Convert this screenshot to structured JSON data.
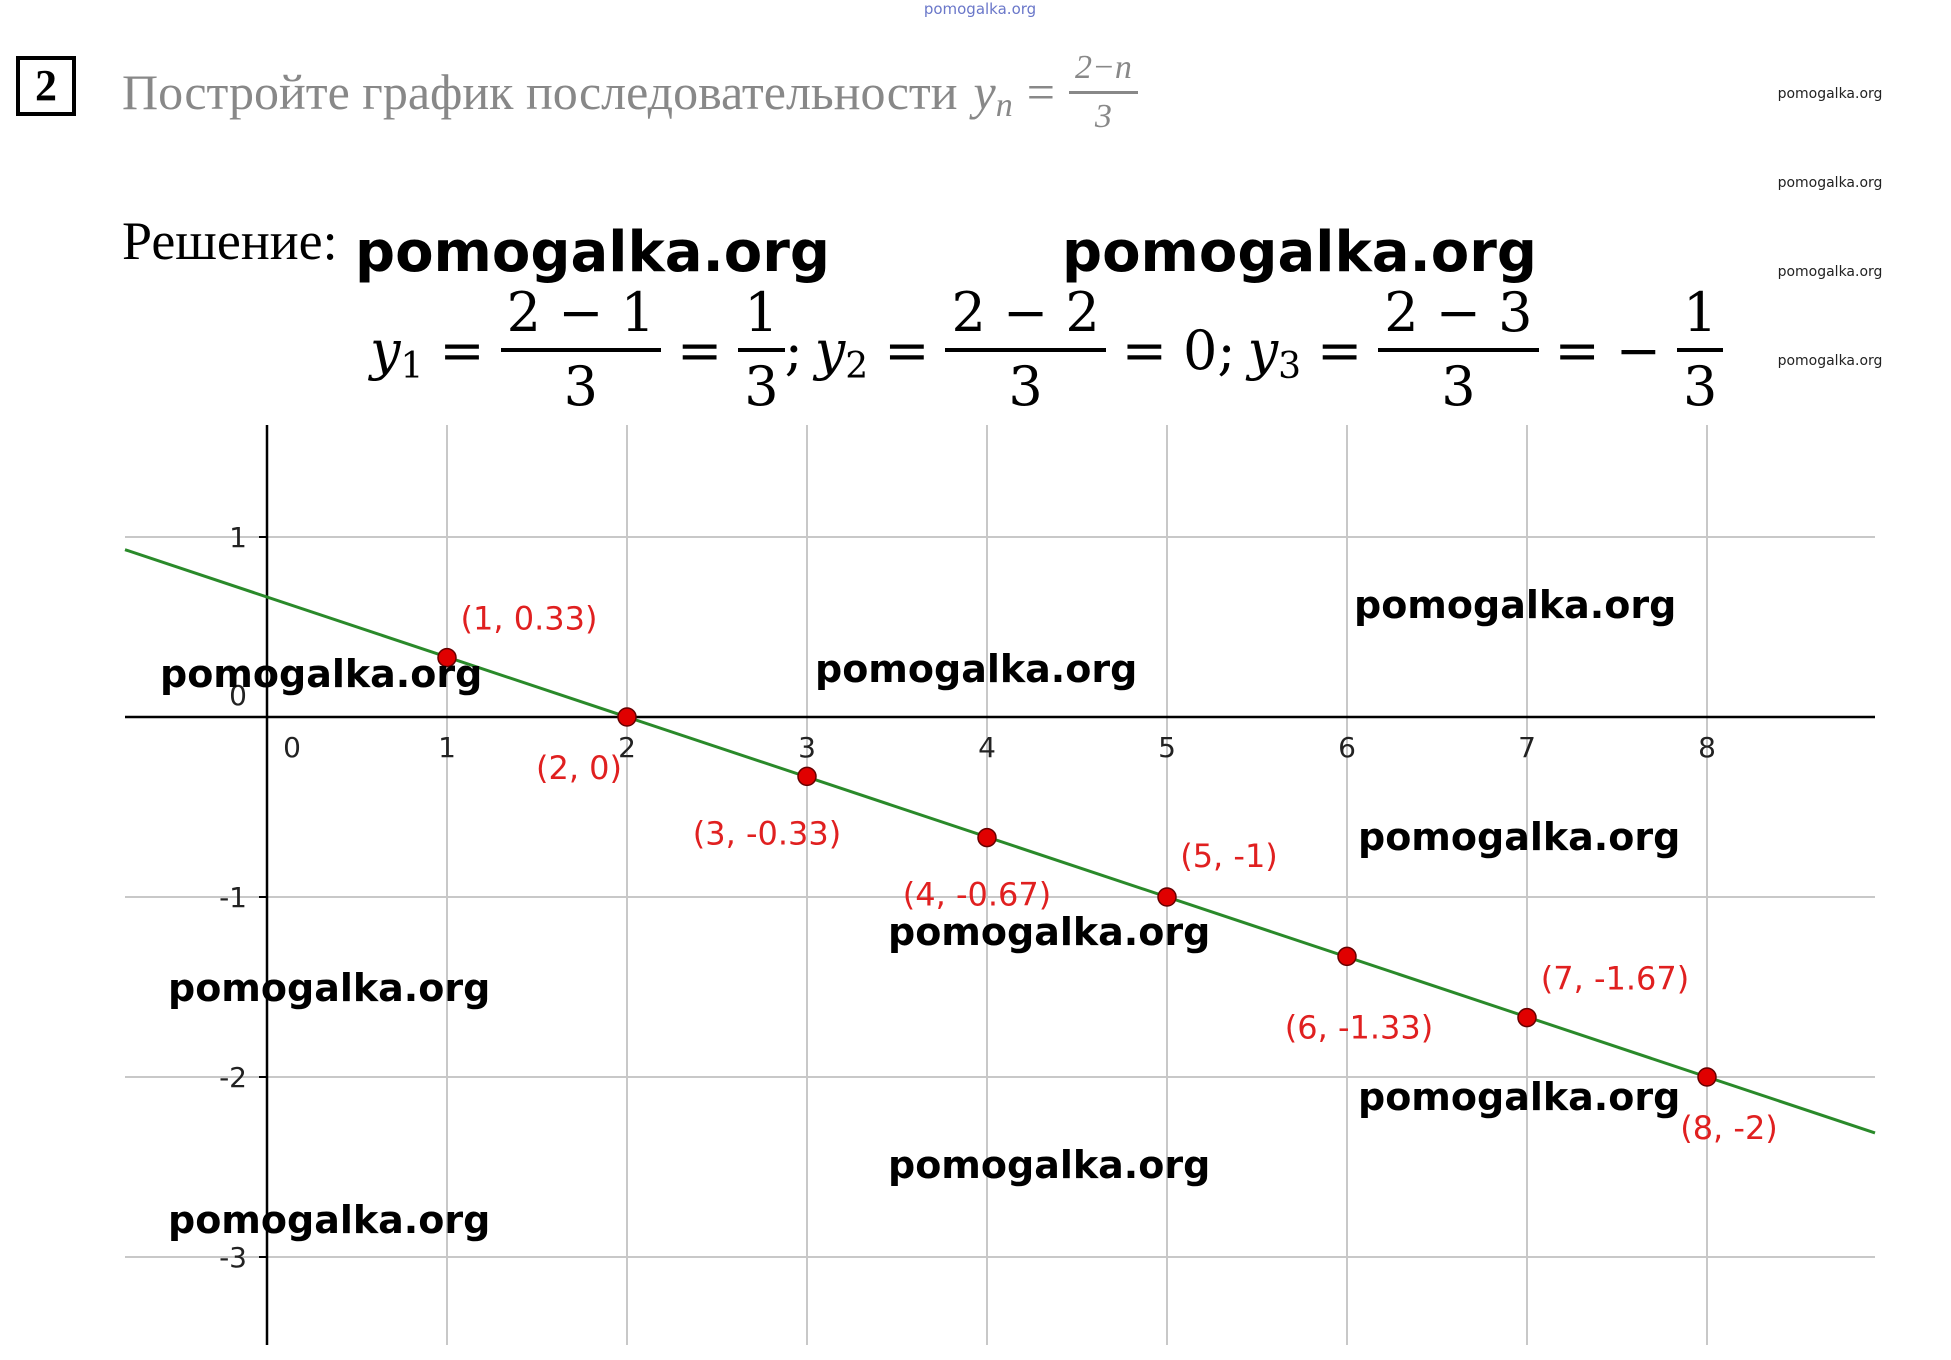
{
  "watermarks": {
    "top": "pomogalka.org",
    "side": [
      "pomogalka.org",
      "pomogalka.org",
      "pomogalka.org",
      "pomogalka.org"
    ],
    "big": [
      "pomogalka.org",
      "pomogalka.org"
    ],
    "chart": [
      "pomogalka.org",
      "pomogalka.org",
      "pomogalka.org",
      "pomogalka.org",
      "pomogalka.org",
      "pomogalka.org",
      "pomogalka.org",
      "pomogalka.org",
      "pomogalka.org",
      "pomogalka.org"
    ]
  },
  "task": {
    "number": "2",
    "text": "Постройте график последовательности",
    "variable": "y",
    "subscript": "n",
    "equals": "=",
    "numerator": "2−n",
    "denominator": "3"
  },
  "solution_label": "Решение:",
  "formula": {
    "terms": [
      {
        "var": "y",
        "sub": "1",
        "num": "2 − 1",
        "den": "3",
        "result_num": "1",
        "result_den": "3",
        "result_sign": ""
      },
      {
        "var": "y",
        "sub": "2",
        "num": "2 − 2",
        "den": "3",
        "result_text": "0"
      },
      {
        "var": "y",
        "sub": "3",
        "num": "2 − 3",
        "den": "3",
        "result_num": "1",
        "result_den": "3",
        "result_sign": "−"
      }
    ],
    "equals": "=",
    "separator": ";"
  },
  "chart_data": {
    "type": "scatter",
    "title": "",
    "xlabel": "",
    "ylabel": "",
    "xlim": [
      -0.8,
      8.9
    ],
    "ylim": [
      -3.5,
      1.6
    ],
    "grid": true,
    "x_ticks": [
      0,
      1,
      2,
      3,
      4,
      5,
      6,
      7,
      8
    ],
    "y_ticks": [
      1,
      0,
      -1,
      -2,
      -3
    ],
    "x_tick_labels": [
      "0",
      "1",
      "2",
      "3",
      "4",
      "5",
      "6",
      "7",
      "8"
    ],
    "y_tick_labels": [
      "1",
      "0",
      "-1",
      "-2",
      "-3"
    ],
    "line": {
      "slope": -0.3333,
      "intercept": 0.6667,
      "color": "#2a8a2a"
    },
    "points": [
      {
        "x": 1,
        "y": 0.33,
        "label": "(1, 0.33)"
      },
      {
        "x": 2,
        "y": 0,
        "label": "(2, 0)"
      },
      {
        "x": 3,
        "y": -0.33,
        "label": "(3, -0.33)"
      },
      {
        "x": 4,
        "y": -0.67,
        "label": "(4, -0.67)"
      },
      {
        "x": 5,
        "y": -1,
        "label": "(5, -1)"
      },
      {
        "x": 6,
        "y": -1.33,
        "label": "(6, -1.33)"
      },
      {
        "x": 7,
        "y": -1.67,
        "label": "(7, -1.67)"
      },
      {
        "x": 8,
        "y": -2,
        "label": "(8, -2)"
      }
    ],
    "point_color": "#e00000",
    "label_color": "#e02020"
  }
}
